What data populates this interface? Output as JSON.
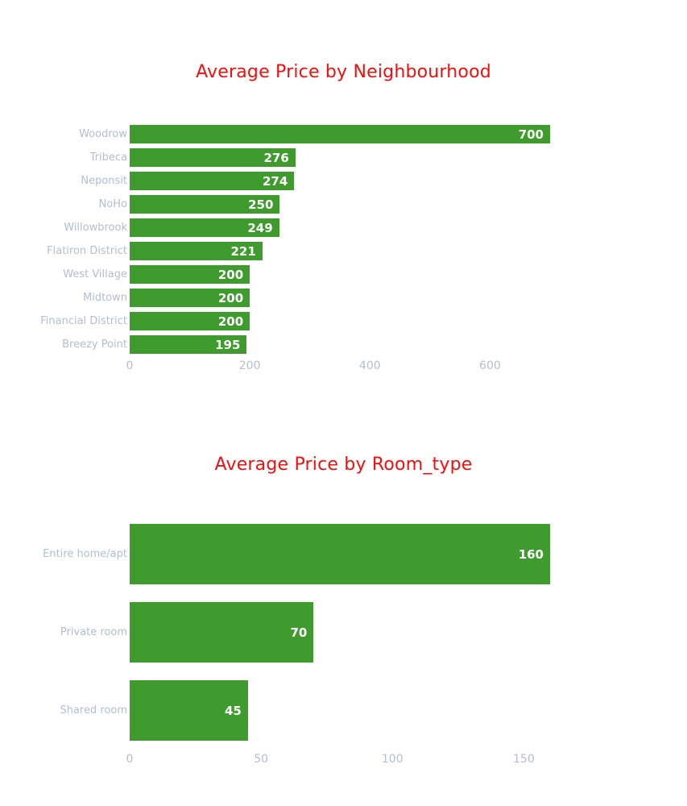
{
  "style": {
    "background": "#ffffff",
    "bar_color": "#3f9b2e",
    "title_color": "#f40f0f",
    "label_color": "#b2becf",
    "value_color": "#ffffff"
  },
  "chart_data": [
    {
      "type": "bar",
      "orientation": "horizontal",
      "title": "Average Price by Neighbourhood",
      "categories": [
        "Woodrow",
        "Tribeca",
        "Neponsit",
        "NoHo",
        "Willowbrook",
        "Flatiron District",
        "West Village",
        "Midtown",
        "Financial District",
        "Breezy Point"
      ],
      "values": [
        700,
        276,
        274,
        250,
        249,
        221,
        200,
        200,
        200,
        195
      ],
      "value_labels": [
        "700",
        "276",
        "274",
        "250",
        "249",
        "221",
        "200",
        "200",
        "200",
        "195"
      ],
      "xlabel": "",
      "ylabel": "",
      "xticks": [
        0,
        200,
        400,
        600
      ],
      "xlim": [
        0,
        700
      ],
      "grid": false,
      "legend": false,
      "value_labels_inside_bars": true
    },
    {
      "type": "bar",
      "orientation": "horizontal",
      "title": "Average Price by Room_type",
      "categories": [
        "Entire home/apt",
        "Private room",
        "Shared room"
      ],
      "values": [
        160,
        70,
        45
      ],
      "value_labels": [
        "160",
        "70",
        "45"
      ],
      "xlabel": "",
      "ylabel": "",
      "xticks": [
        0,
        50,
        100,
        150
      ],
      "xlim": [
        0,
        160
      ],
      "grid": false,
      "legend": false,
      "value_labels_inside_bars": true
    }
  ]
}
